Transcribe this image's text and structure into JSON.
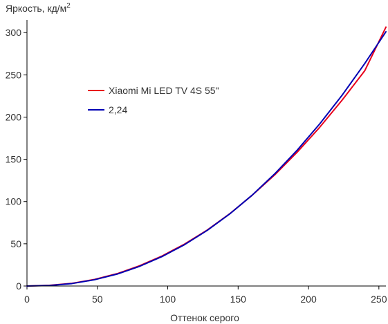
{
  "chart_data": {
    "type": "line",
    "title": "",
    "ylabel": "Яркость, кд/м",
    "ylabel_superscript": "2",
    "xlabel": "Оттенок серого",
    "xlim": [
      0,
      255
    ],
    "ylim": [
      0,
      310
    ],
    "xticks": [
      0,
      50,
      100,
      150,
      200,
      250
    ],
    "yticks": [
      0,
      50,
      100,
      150,
      200,
      250,
      300
    ],
    "grid": false,
    "legend_position": "upper-left",
    "series": [
      {
        "name": "Xiaomi Mi LED TV 4S 55\"",
        "color": "#e8001c",
        "x": [
          0,
          16,
          32,
          48,
          64,
          80,
          96,
          112,
          128,
          144,
          160,
          176,
          192,
          208,
          224,
          240,
          255
        ],
        "y": [
          0,
          0.8,
          3.2,
          7.8,
          14.6,
          24.0,
          35.6,
          49.7,
          66.2,
          85.5,
          107.5,
          131.6,
          158.5,
          188.0,
          220.3,
          255.0,
          306.5
        ]
      },
      {
        "name": "2,24",
        "color": "#0000b4",
        "x": [
          0,
          16,
          32,
          48,
          64,
          80,
          96,
          112,
          128,
          144,
          160,
          176,
          192,
          208,
          224,
          240,
          255
        ],
        "y": [
          0,
          0.6,
          2.9,
          7.4,
          14.1,
          23.3,
          34.9,
          49.0,
          65.8,
          85.3,
          107.6,
          132.8,
          160.9,
          192.0,
          226.2,
          263.5,
          301.0
        ]
      }
    ]
  }
}
